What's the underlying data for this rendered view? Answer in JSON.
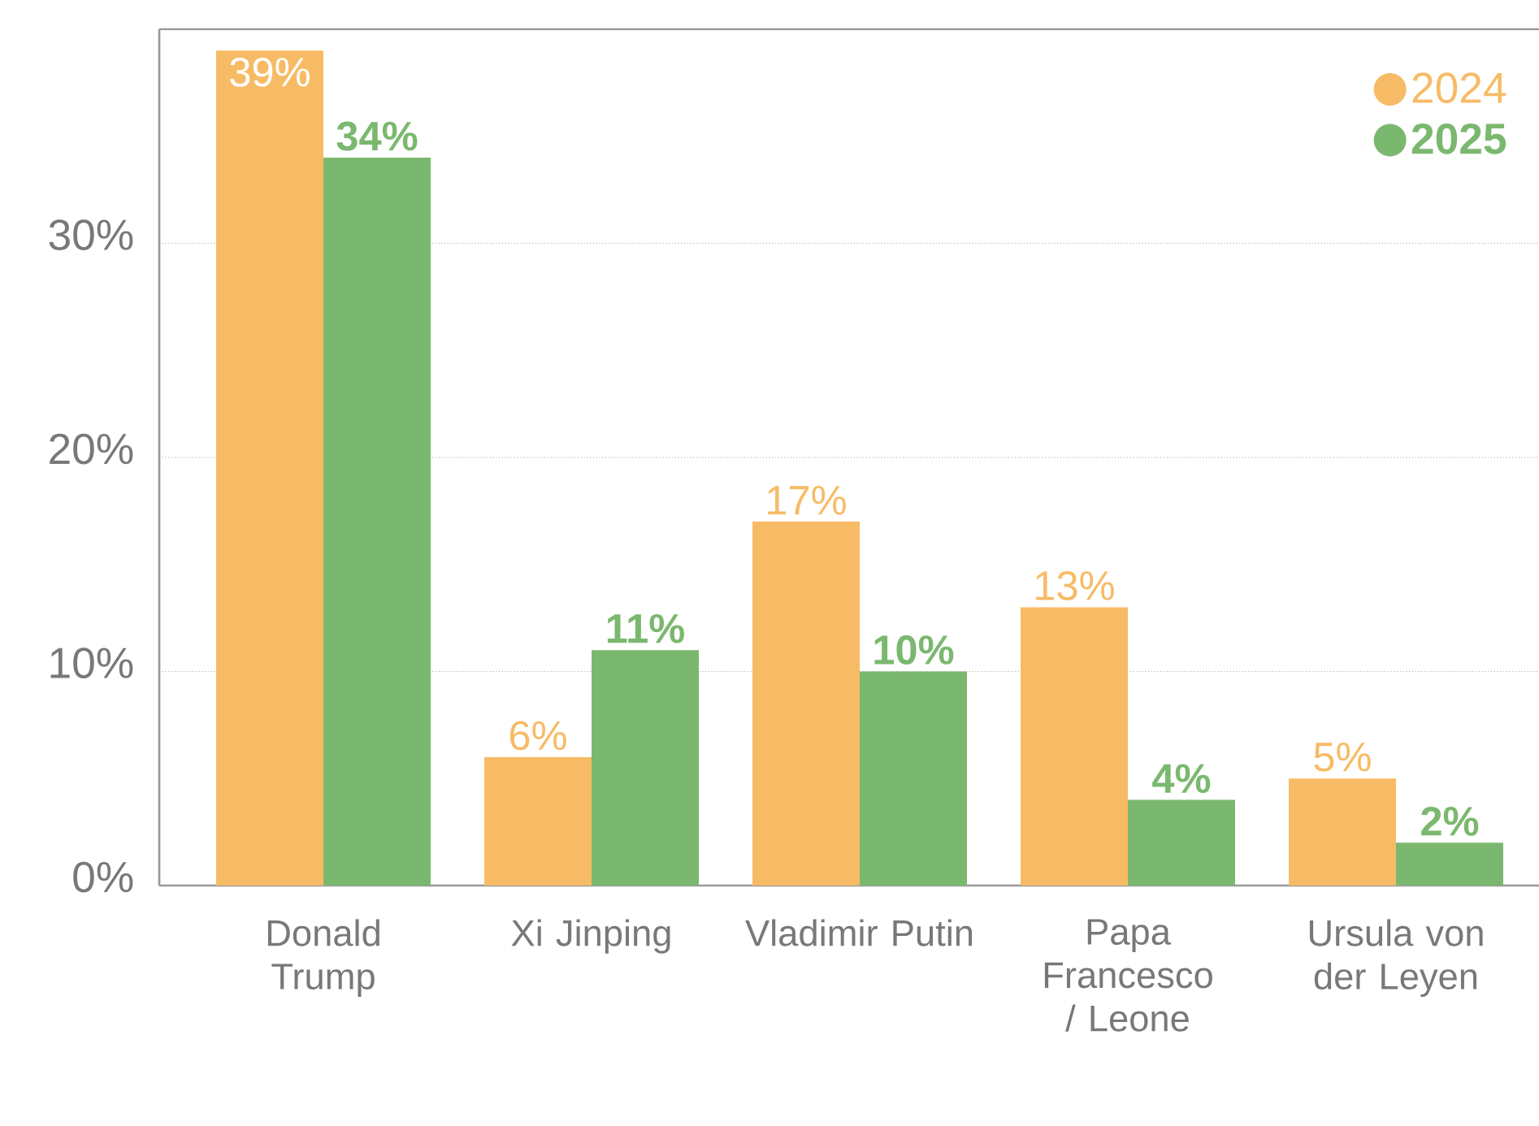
{
  "chart_data": {
    "type": "bar",
    "categories": [
      "Donald Trump",
      "Xi Jinping",
      "Vladimir Putin",
      "Papa Francesco / Leone",
      "Ursula von der Leyen"
    ],
    "series": [
      {
        "name": "2024",
        "color": "#f7bb66",
        "values": [
          39,
          6,
          17,
          13,
          5
        ],
        "value_labels": [
          "39%",
          "6%",
          "17%",
          "13%",
          "5%"
        ]
      },
      {
        "name": "2025",
        "color": "#7bb86f",
        "values": [
          34,
          11,
          10,
          4,
          2
        ],
        "value_labels": [
          "34%",
          "11%",
          "10%",
          "4%",
          "2%"
        ]
      }
    ],
    "ylim": [
      0,
      40
    ],
    "yticks": [
      {
        "value": 0,
        "label": "0%"
      },
      {
        "value": 10,
        "label": "10%"
      },
      {
        "value": 20,
        "label": "20%"
      },
      {
        "value": 30,
        "label": "30%"
      }
    ],
    "grid": "y",
    "legend": "top right"
  }
}
